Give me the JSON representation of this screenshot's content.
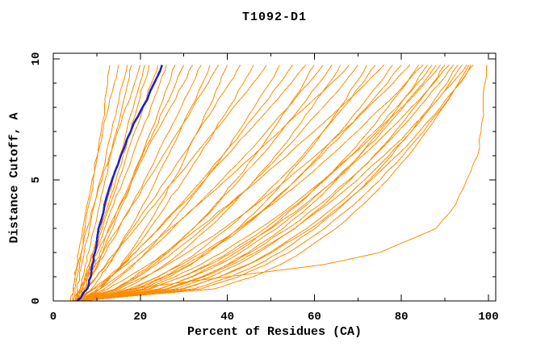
{
  "title": "T1092-D1",
  "axes": {
    "x_label": "Percent of Residues (CA)",
    "y_label": "Distance Cutoff, A"
  },
  "chart_data": {
    "type": "line",
    "title": "T1092-D1",
    "xlabel": "Percent of Residues (CA)",
    "ylabel": "Distance Cutoff, A",
    "xlim": [
      0,
      100
    ],
    "ylim": [
      0,
      10
    ],
    "x_major_ticks": [
      0,
      20,
      40,
      60,
      80,
      100
    ],
    "x_minor_ticks": [
      10,
      30,
      50,
      70,
      90
    ],
    "y_major_ticks": [
      0,
      5,
      10
    ],
    "y_minor_ticks": [
      1,
      2,
      3,
      4,
      6,
      7,
      8,
      9
    ],
    "grid": false,
    "legend": "none",
    "axis_color": "#000000",
    "model_color": "#ff8c00",
    "highlight_color": "#2222cc",
    "cutoffs": [
      0,
      0.5,
      1,
      1.5,
      2,
      3,
      4,
      5,
      6,
      7,
      8,
      9,
      9.75
    ],
    "highlight_series": {
      "x": [
        5.5,
        7.8,
        8.6,
        9.0,
        9.6,
        10.4,
        11.8,
        13.5,
        15.5,
        17.8,
        20.5,
        23.2,
        25
      ]
    },
    "model_series": [
      [
        4.5,
        5,
        5.5,
        6,
        6.5,
        7.3,
        8.2,
        9.2,
        10.2,
        11,
        11.8,
        12.5,
        13
      ],
      [
        4.5,
        4.7,
        5,
        5.4,
        5.8,
        6.8,
        7.8,
        8.9,
        10.1,
        11.4,
        12.7,
        14,
        15
      ],
      [
        5,
        5.5,
        6,
        6.5,
        7.1,
        8.3,
        9.5,
        10.8,
        12.1,
        13.4,
        14.7,
        16,
        17
      ],
      [
        5.5,
        6.2,
        6.8,
        7.4,
        8.1,
        9.4,
        10.7,
        11.9,
        13.2,
        14.5,
        15.8,
        17.1,
        18
      ],
      [
        4,
        4.5,
        5,
        5.7,
        6.4,
        7.8,
        9.4,
        11.2,
        12.9,
        14.8,
        16.7,
        18.7,
        20
      ],
      [
        6,
        6.8,
        7.5,
        8.3,
        9.1,
        10.6,
        12.2,
        13.7,
        15.3,
        16.8,
        18.4,
        19.9,
        21
      ],
      [
        5,
        6.2,
        7.2,
        8.2,
        9.1,
        10.9,
        12.7,
        14.4,
        16,
        17.7,
        19.3,
        20.9,
        22
      ],
      [
        6.5,
        7.2,
        7.9,
        8.7,
        9.6,
        11.3,
        13.1,
        15,
        16.8,
        18.7,
        20.7,
        22.6,
        24
      ],
      [
        5.5,
        6.6,
        7.6,
        8.7,
        9.7,
        11.8,
        13.9,
        16.1,
        18.2,
        20.3,
        22.4,
        24.5,
        26
      ],
      [
        6,
        7.5,
        8.8,
        10.1,
        11.3,
        13.7,
        15.9,
        18.1,
        20.3,
        22.4,
        24.5,
        26.6,
        28
      ],
      [
        5,
        6.3,
        7.6,
        8.9,
        10.2,
        12.7,
        15.3,
        17.9,
        20.5,
        23.1,
        25.6,
        28.2,
        30
      ],
      [
        7,
        7.7,
        8.6,
        9.6,
        10.7,
        13,
        15.5,
        18.2,
        20.9,
        23.9,
        26.9,
        30,
        32
      ],
      [
        5,
        7,
        8.7,
        10.4,
        12,
        15.1,
        18.1,
        21,
        23.8,
        26.6,
        29.4,
        32.1,
        34
      ],
      [
        6,
        8.8,
        10.9,
        12.8,
        14.5,
        17.7,
        20.7,
        23.6,
        26.4,
        29.1,
        31.7,
        34.3,
        36
      ],
      [
        4.5,
        6.2,
        8,
        9.7,
        11.4,
        14.9,
        18.3,
        21.8,
        25.2,
        28.7,
        32.1,
        35.6,
        38
      ],
      [
        6.5,
        10.7,
        13.3,
        15.6,
        17.6,
        21.2,
        24.5,
        27.6,
        30.5,
        33.2,
        35.8,
        38.3,
        40
      ],
      [
        5,
        7.7,
        9.9,
        12.1,
        14.2,
        18.2,
        22.1,
        25.9,
        29.7,
        33.3,
        37,
        40.5,
        43
      ],
      [
        7,
        10.7,
        13.3,
        15.8,
        18,
        22.2,
        26.1,
        29.9,
        33.6,
        37,
        40.4,
        43.7,
        46
      ],
      [
        5.5,
        7.8,
        10,
        12.2,
        14.5,
        18.9,
        23.4,
        27.9,
        32.4,
        36.9,
        41.4,
        45.9,
        49
      ],
      [
        6,
        11.8,
        15.4,
        18.5,
        21.2,
        26.2,
        30.7,
        34.9,
        38.9,
        42.6,
        46.2,
        49.7,
        52
      ],
      [
        4.5,
        9.2,
        12.7,
        15.9,
        18.8,
        24.2,
        29.3,
        34.2,
        38.9,
        43.4,
        47.8,
        52.1,
        55
      ],
      [
        6.5,
        10.1,
        13.1,
        16.1,
        18.9,
        24.4,
        29.7,
        34.8,
        39.9,
        44.9,
        49.8,
        54.7,
        58
      ],
      [
        5,
        14.4,
        19.1,
        23,
        26.3,
        32.2,
        37.3,
        42,
        46.3,
        50.2,
        54,
        57.6,
        60
      ],
      [
        5.5,
        10.8,
        14.7,
        18.2,
        21.5,
        27.5,
        33.2,
        38.7,
        44,
        49,
        54,
        58.7,
        62
      ],
      [
        7,
        14.2,
        18.6,
        22.4,
        25.9,
        32.1,
        37.7,
        42.8,
        47.8,
        52.4,
        56.8,
        61.1,
        64
      ],
      [
        6,
        16.2,
        21.4,
        25.6,
        29.3,
        35.6,
        41.3,
        46.3,
        51,
        55.3,
        59.5,
        63.4,
        66
      ],
      [
        5,
        9.4,
        13.1,
        16.8,
        20.2,
        26.9,
        33.4,
        39.7,
        45.9,
        52,
        58,
        63.9,
        68
      ],
      [
        6.5,
        14.5,
        19.5,
        23.7,
        27.5,
        34.4,
        40.7,
        46.4,
        51.9,
        57,
        62,
        66.8,
        70
      ],
      [
        5.5,
        20.7,
        26.8,
        31.7,
        35.7,
        42.5,
        48.2,
        53.2,
        57.8,
        62,
        65.9,
        69.5,
        72
      ],
      [
        7,
        18.4,
        24.2,
        28.9,
        33,
        40.1,
        46.4,
        52,
        57.3,
        62.1,
        66.7,
        71.1,
        74
      ],
      [
        6,
        12.6,
        17.3,
        21.8,
        25.8,
        33.3,
        40.4,
        47.2,
        53.7,
        59.9,
        66,
        71.9,
        76
      ],
      [
        5,
        19.4,
        25.9,
        31.3,
        35.7,
        43.3,
        49.9,
        55.7,
        61.1,
        66,
        70.6,
        75,
        78
      ],
      [
        6.5,
        19,
        25.3,
        30.5,
        35,
        42.8,
        49.7,
        55.9,
        61.6,
        66.9,
        72,
        76.8,
        80
      ],
      [
        5.5,
        15.1,
        21.1,
        26.2,
        30.8,
        39.2,
        46.7,
        53.6,
        60.2,
        66.4,
        72.4,
        78.1,
        82
      ],
      [
        7,
        24.6,
        31.7,
        37.3,
        42,
        49.8,
        56.4,
        62.3,
        67.6,
        72.5,
        76.9,
        81.2,
        84
      ],
      [
        6,
        17.5,
        24,
        29.5,
        34.3,
        42.8,
        50.4,
        57.4,
        63.8,
        69.8,
        75.5,
        81,
        85
      ],
      [
        5,
        26.4,
        34.1,
        40,
        44.8,
        52.8,
        59.4,
        65.1,
        70.3,
        75,
        79.3,
        83.3,
        86
      ],
      [
        6.5,
        22.4,
        29.6,
        35.5,
        40.3,
        48.7,
        56,
        62.4,
        68.4,
        73.8,
        78.9,
        83.7,
        87
      ],
      [
        5.5,
        24.3,
        32,
        38,
        43,
        51.4,
        58.5,
        64.7,
        70.4,
        75.6,
        80.4,
        85,
        88
      ],
      [
        7,
        20.9,
        28,
        33.8,
        38.8,
        47.5,
        55.2,
        62.1,
        68.5,
        74.4,
        80.1,
        85.4,
        89
      ],
      [
        6,
        28.2,
        36.2,
        42.3,
        47.2,
        55.6,
        62.4,
        68.3,
        73.7,
        78.6,
        83,
        87.2,
        90
      ],
      [
        5,
        21.9,
        29.7,
        36,
        41.1,
        50.1,
        57.9,
        64.8,
        71.1,
        76.9,
        82.3,
        87.5,
        91
      ],
      [
        6.5,
        26,
        34,
        40.2,
        45.3,
        54,
        61.4,
        67.9,
        73.8,
        79.2,
        84.1,
        88.8,
        92
      ],
      [
        5.5,
        32.3,
        40.8,
        47,
        52,
        60.2,
        66.8,
        72.6,
        77.7,
        82.3,
        86.5,
        90.5,
        93
      ],
      [
        7,
        30,
        38.2,
        44.6,
        49.7,
        58.3,
        65.4,
        71.5,
        77.1,
        82.2,
        86.8,
        91.1,
        94
      ],
      [
        6,
        26.3,
        34.6,
        41.1,
        46.4,
        55.5,
        63.1,
        69.9,
        76,
        81.6,
        86.8,
        91.7,
        95
      ],
      [
        5,
        37.1,
        45.9,
        52.2,
        57,
        65,
        71.3,
        76.8,
        81.6,
        85.7,
        89.6,
        93.1,
        95.5
      ],
      [
        6.5,
        33.9,
        42.6,
        48.9,
        54.1,
        62.4,
        69.2,
        75.1,
        80.3,
        85.1,
        89.4,
        93.4,
        96
      ],
      [
        5.5,
        29.5,
        38.2,
        44.8,
        50.2,
        59.2,
        66.6,
        73,
        78.9,
        84.1,
        89,
        93.5,
        96.5
      ],
      [
        7,
        18,
        40,
        62,
        75,
        88,
        92.5,
        95,
        97.5,
        98.3,
        98.8,
        99.2,
        99.5
      ]
    ]
  }
}
